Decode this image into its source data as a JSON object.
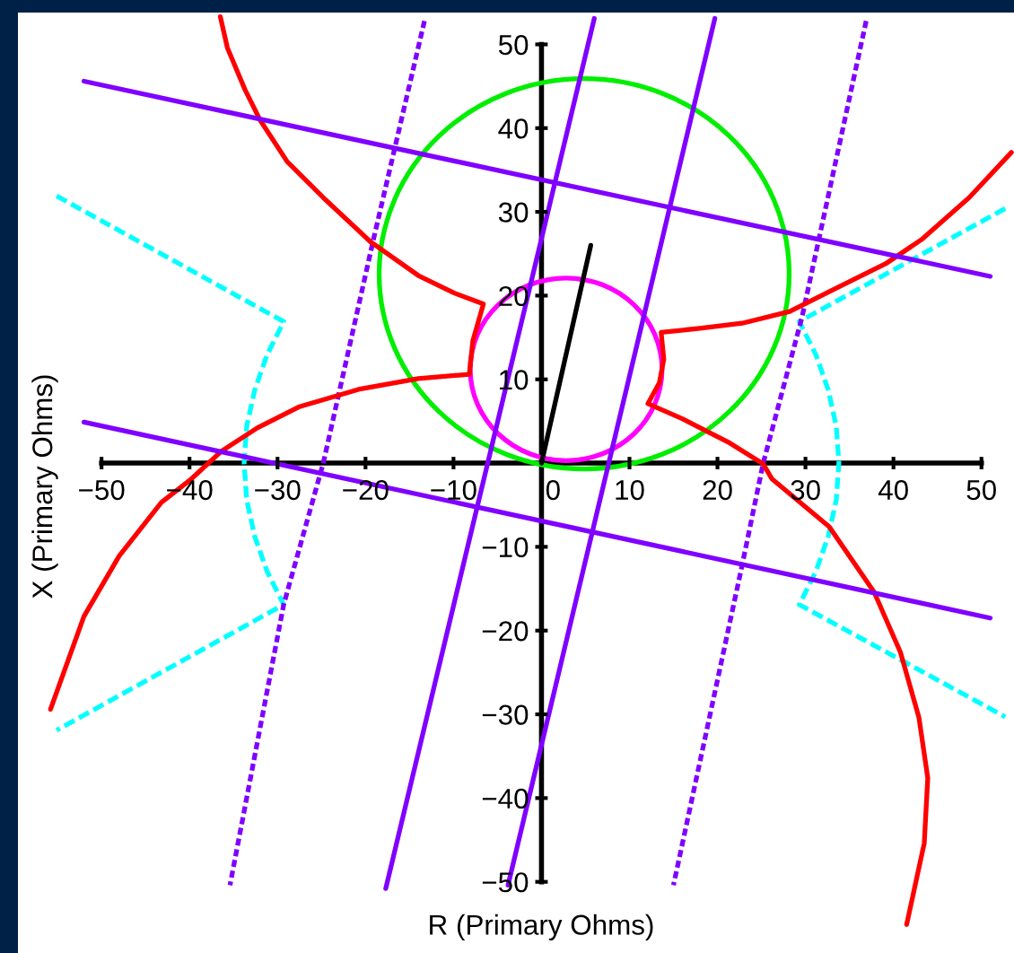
{
  "chart_data": {
    "type": "line",
    "xlabel": "R (Primary Ohms)",
    "ylabel": "X (Primary Ohms)",
    "xlim": [
      -59.5,
      53.7
    ],
    "ylim": [
      -58.5,
      53.8
    ],
    "xticks": [
      -50,
      -40,
      -30,
      -20,
      -10,
      0,
      10,
      20,
      30,
      40,
      50
    ],
    "yticks": [
      -50,
      -40,
      -30,
      -20,
      -10,
      10,
      20,
      30,
      40,
      50
    ],
    "series": [
      {
        "color": "#00ffff",
        "line_style": "dashed",
        "x": [
          -55.1,
          -29.3,
          -31.2,
          -32.6,
          -33.5,
          -33.8,
          -33.5,
          -32.6,
          -31.2,
          -29.3,
          -55.1
        ],
        "values": [
          31.9,
          16.9,
          12.9,
          8.7,
          4.4,
          0,
          -4.4,
          -8.7,
          -12.9,
          -16.9,
          -31.9
        ]
      },
      {
        "color": "#00ffff",
        "line_style": "dashed",
        "x": [
          52.7,
          29.3,
          31.2,
          32.6,
          33.5,
          33.8,
          33.5,
          32.6,
          31.2,
          29.3,
          52.7
        ],
        "values": [
          30.4,
          16.9,
          12.9,
          8.7,
          4.4,
          0,
          -4.4,
          -8.7,
          -12.9,
          -16.9,
          -30.3
        ]
      },
      {
        "color": "#8000ff",
        "line_style": "dotted",
        "x": [
          -13.3,
          -19.1,
          -24.8,
          -29.3,
          -35.4
        ],
        "values": [
          52.8,
          26.7,
          0,
          -16.9,
          -50.4
        ]
      },
      {
        "color": "#8000ff",
        "line_style": "dotted",
        "x": [
          36.9,
          29.6,
          25.2,
          22.8,
          15.0
        ],
        "values": [
          52.8,
          17.4,
          0,
          -12.2,
          -50.4
        ]
      },
      {
        "color": "#ff0000",
        "line_style": "solid",
        "x": [
          -55.8,
          -52.0,
          -48.0,
          -43.2,
          -39.8,
          -36.4,
          -32.3,
          -27.6,
          -20.8,
          -14.0,
          -8.2,
          -7.8,
          -6.6,
          -9.9,
          -14.0,
          -19.4,
          -24.8,
          -28.9,
          -32.0,
          -33.7,
          -35.7,
          -36.5
        ],
        "values": [
          -29.4,
          -18.3,
          -11.1,
          -4.7,
          -1.9,
          1.4,
          4.2,
          6.7,
          8.8,
          10.1,
          10.6,
          14.6,
          19.0,
          20.3,
          22.4,
          26.4,
          31.7,
          36.0,
          41.0,
          44.6,
          49.6,
          53.3
        ]
      },
      {
        "color": "#ff0000",
        "line_style": "solid",
        "x": [
          53.4,
          48.6,
          43.2,
          39.1,
          33.7,
          28.2,
          22.8,
          18.0,
          13.6,
          13.9,
          13.4,
          12.1,
          16.0,
          21.4,
          25.2,
          26.2,
          32.7,
          37.8,
          40.8,
          42.9,
          43.9,
          43.5,
          41.5
        ],
        "values": [
          37.1,
          31.7,
          26.7,
          23.8,
          21.0,
          18.1,
          16.7,
          16.1,
          15.6,
          12.4,
          9.6,
          7.1,
          5.3,
          2.4,
          -0.1,
          -1.9,
          -7.6,
          -15.4,
          -22.6,
          -30.4,
          -37.6,
          -45.4,
          -55.1
        ]
      },
      {
        "color": "#8000ff",
        "line_style": "solid",
        "x": [
          -52.0,
          51.0
        ],
        "values": [
          45.6,
          22.3
        ]
      },
      {
        "color": "#8000ff",
        "line_style": "solid",
        "x": [
          -52.0,
          51.0
        ],
        "values": [
          4.9,
          -18.5
        ]
      },
      {
        "color": "#8000ff",
        "line_style": "solid",
        "x": [
          6.0,
          -17.7
        ],
        "values": [
          53.1,
          -50.8
        ]
      },
      {
        "color": "#8000ff",
        "line_style": "solid",
        "x": [
          19.7,
          -3.8
        ],
        "values": [
          53.1,
          -50.4
        ]
      },
      {
        "color": "#000000",
        "line_style": "solid",
        "x": [
          0,
          5.6
        ],
        "values": [
          0,
          26.0
        ]
      }
    ]
  }
}
